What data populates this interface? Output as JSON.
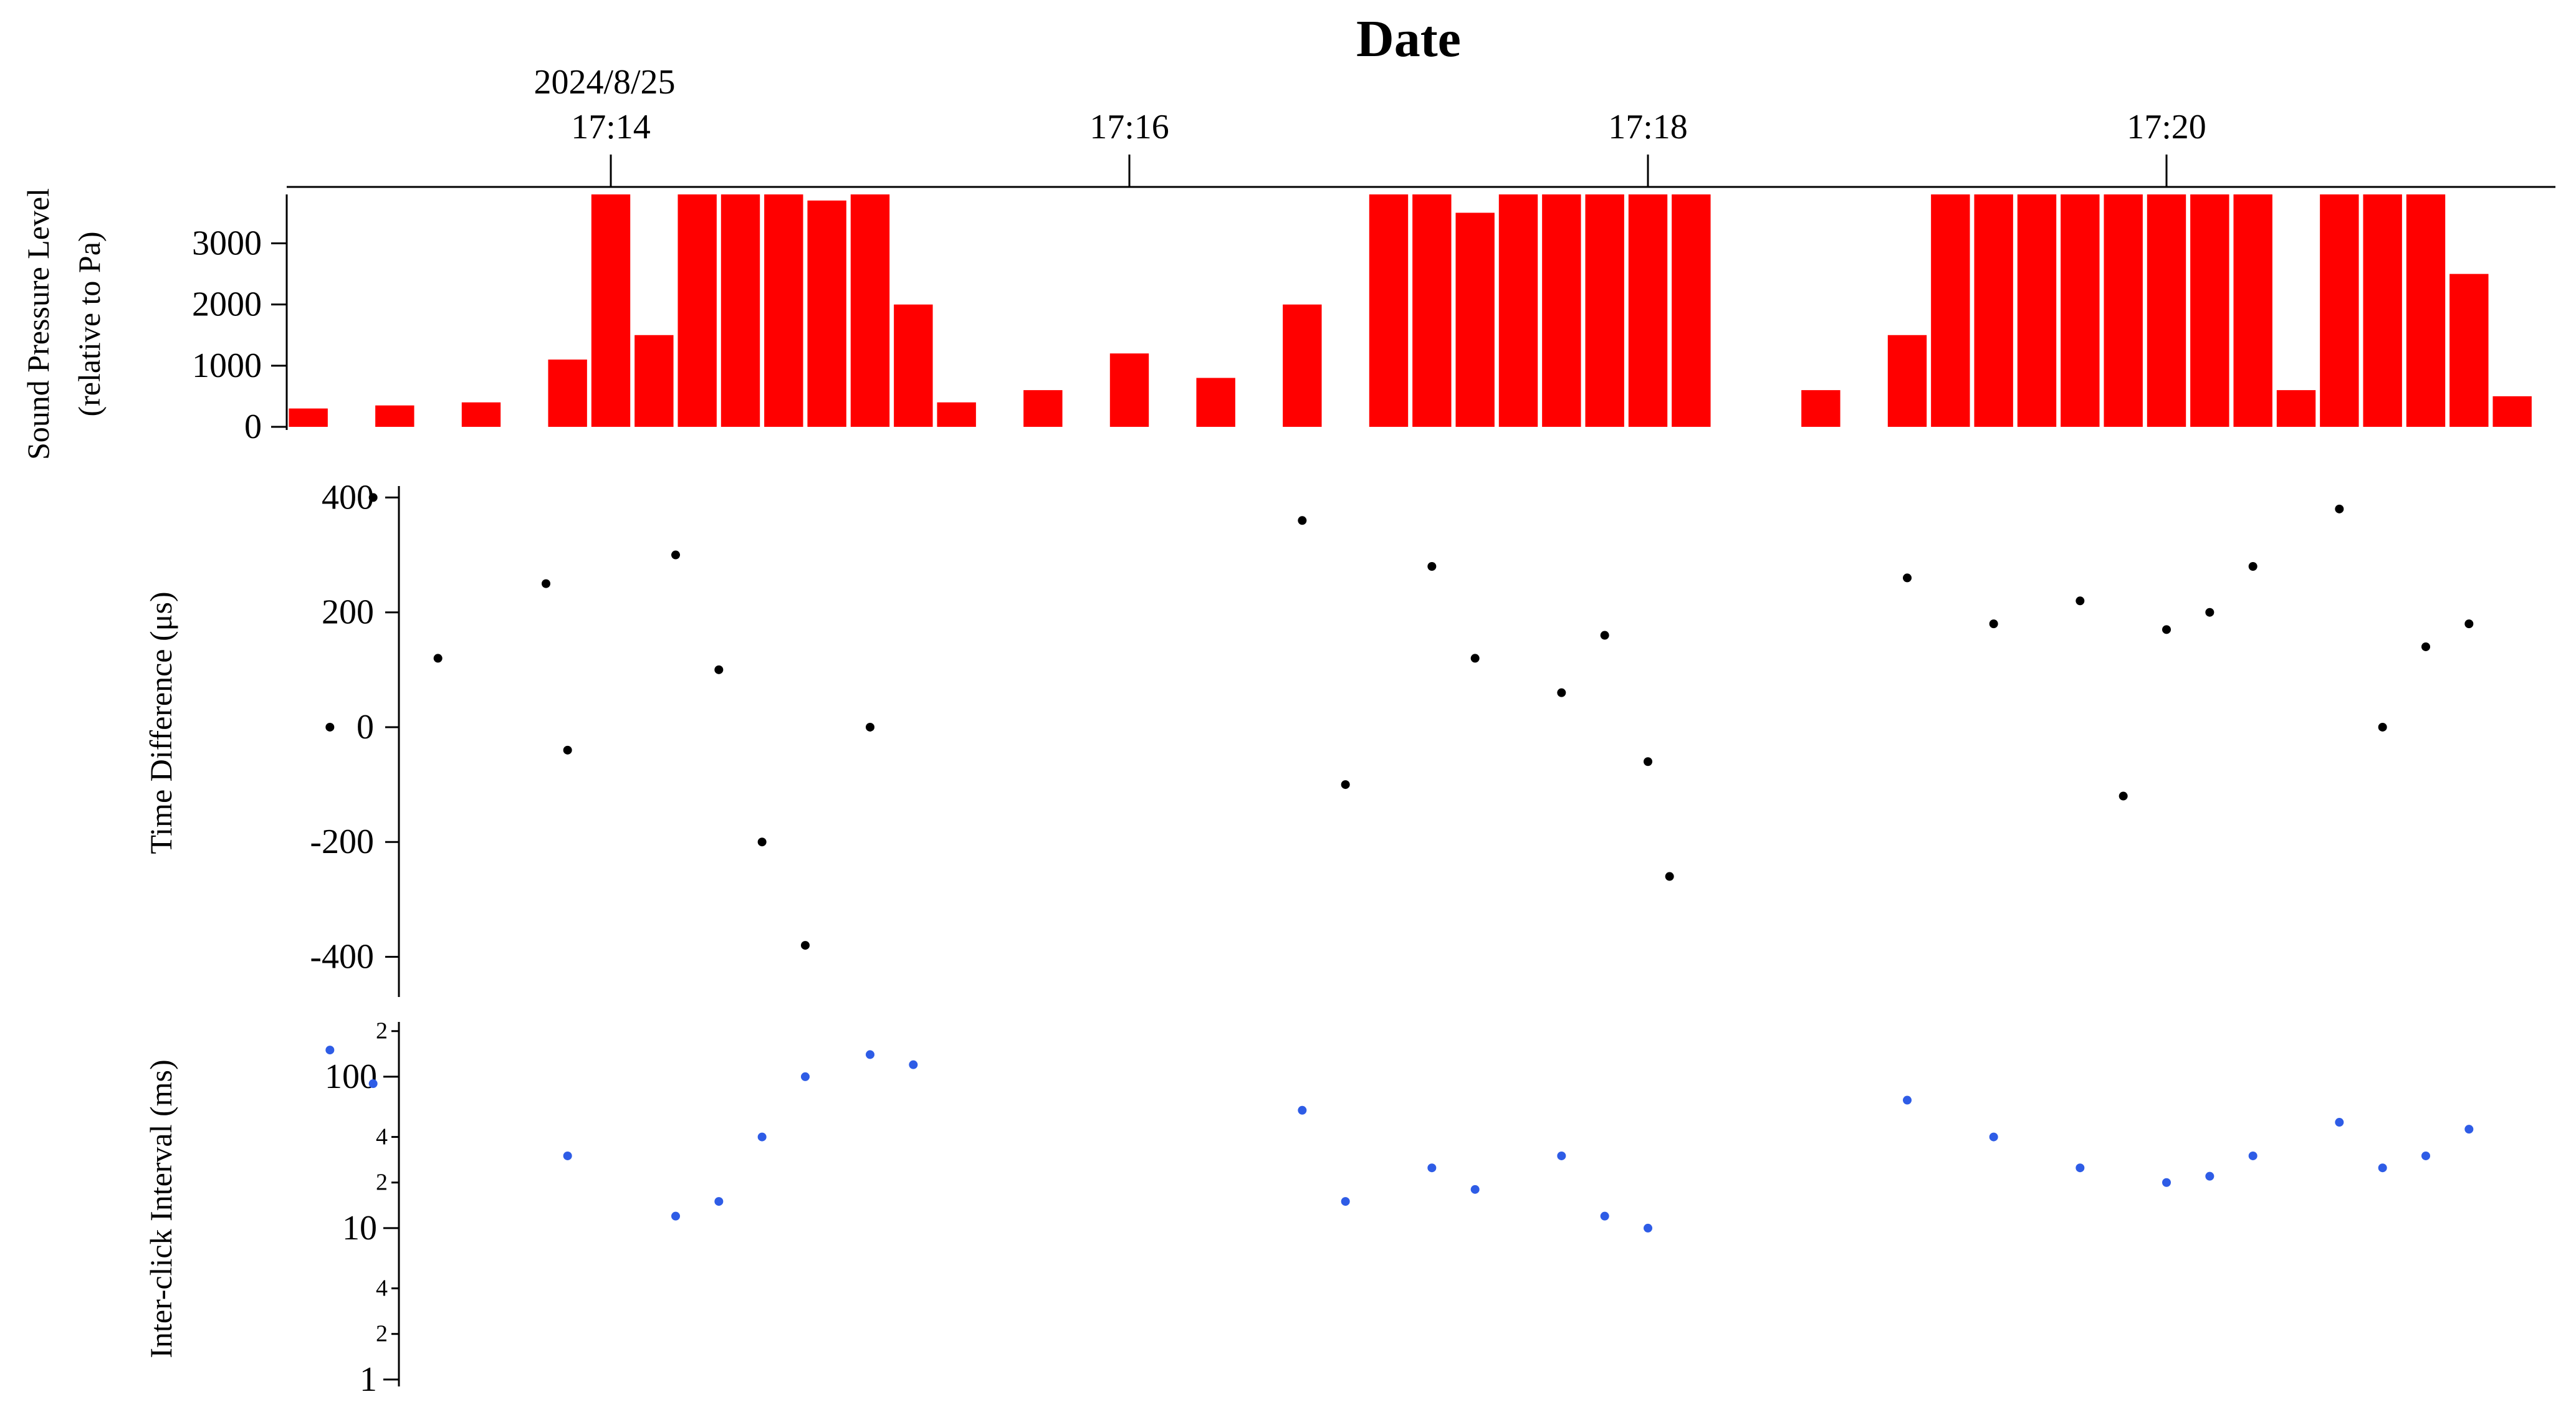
{
  "chart_data": [
    {
      "type": "bar",
      "title": "Date",
      "xlabel": "Date",
      "date_label": "2024/8/25",
      "x_ticks": [
        "17:14",
        "17:16",
        "17:18",
        "17:20"
      ],
      "x_range": [
        "17:12:45",
        "17:21:30"
      ],
      "ylabel_line1": "Sound Pressure Level",
      "ylabel_line2": "(relative to Pa)",
      "ylim": [
        0,
        3800
      ],
      "y_ticks": [
        "0",
        "1000",
        "2000",
        "3000"
      ],
      "color": "#ff0000",
      "x": [
        "17:12:50",
        "17:13:10",
        "17:13:30",
        "17:13:50",
        "17:14:00",
        "17:14:10",
        "17:14:20",
        "17:14:30",
        "17:14:40",
        "17:14:50",
        "17:15:00",
        "17:15:10",
        "17:15:20",
        "17:15:40",
        "17:16:00",
        "17:16:20",
        "17:16:40",
        "17:17:00",
        "17:17:10",
        "17:17:20",
        "17:17:30",
        "17:17:40",
        "17:17:50",
        "17:18:00",
        "17:18:10",
        "17:18:30",
        "17:18:40",
        "17:19:00",
        "17:19:10",
        "17:19:20",
        "17:19:30",
        "17:19:40",
        "17:19:50",
        "17:20:00",
        "17:20:10",
        "17:20:20",
        "17:20:30",
        "17:20:40",
        "17:20:50",
        "17:21:00",
        "17:21:10",
        "17:21:20"
      ],
      "values": [
        300,
        350,
        400,
        1100,
        3800,
        1500,
        3800,
        3800,
        3800,
        3700,
        3800,
        2000,
        400,
        600,
        1200,
        800,
        2000,
        3800,
        3800,
        3500,
        3800,
        3800,
        3800,
        3800,
        3800,
        0,
        600,
        1500,
        3800,
        3800,
        3800,
        3800,
        3800,
        3800,
        3800,
        3800,
        600,
        3800,
        3800,
        3800,
        2500,
        500
      ]
    },
    {
      "type": "scatter",
      "ylabel": "Time Difference (μs)",
      "ylim": [
        -470,
        420
      ],
      "y_ticks": [
        "400",
        "200",
        "0",
        "-200",
        "-400"
      ],
      "color": "#000000",
      "x": [
        "17:12:55",
        "17:13:05",
        "17:13:20",
        "17:13:45",
        "17:13:50",
        "17:14:15",
        "17:14:25",
        "17:14:35",
        "17:14:45",
        "17:15:00",
        "17:16:40",
        "17:16:50",
        "17:17:10",
        "17:17:20",
        "17:17:40",
        "17:17:50",
        "17:18:00",
        "17:18:05",
        "17:19:00",
        "17:19:20",
        "17:19:40",
        "17:19:50",
        "17:20:00",
        "17:20:10",
        "17:20:20",
        "17:20:40",
        "17:20:50",
        "17:21:00",
        "17:21:10"
      ],
      "values": [
        0,
        400,
        120,
        250,
        -40,
        300,
        100,
        -200,
        -380,
        0,
        360,
        -100,
        280,
        120,
        60,
        160,
        -60,
        -260,
        260,
        180,
        220,
        -120,
        170,
        200,
        280,
        380,
        0,
        140,
        180
      ]
    },
    {
      "type": "scatter",
      "ylabel": "Inter-click Interval (ms)",
      "yscale": "log",
      "ylim": [
        0.9,
        230
      ],
      "y_ticks": [
        "100",
        "10",
        "1"
      ],
      "y_minor_ticks": [
        "2",
        "4",
        "2",
        "4",
        "2"
      ],
      "color": "#2e5ce6",
      "x": [
        "17:12:55",
        "17:13:05",
        "17:13:50",
        "17:14:15",
        "17:14:25",
        "17:14:35",
        "17:14:45",
        "17:15:00",
        "17:15:10",
        "17:16:40",
        "17:16:50",
        "17:17:10",
        "17:17:20",
        "17:17:40",
        "17:17:50",
        "17:18:00",
        "17:19:00",
        "17:19:20",
        "17:19:40",
        "17:20:00",
        "17:20:10",
        "17:20:20",
        "17:20:40",
        "17:20:50",
        "17:21:00",
        "17:21:10"
      ],
      "values": [
        150,
        90,
        30,
        12,
        15,
        40,
        100,
        140,
        120,
        60,
        15,
        25,
        18,
        30,
        12,
        10,
        70,
        40,
        25,
        20,
        22,
        30,
        50,
        25,
        30,
        45
      ]
    }
  ]
}
